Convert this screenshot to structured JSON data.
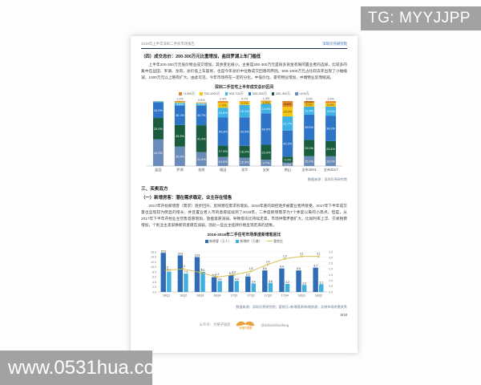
{
  "watermarks": {
    "top_right": "TG: MYYJJPP",
    "bottom_left": "www.0531hua.com"
  },
  "page": {
    "header": {
      "left": "2018年上半年深圳二手房市场报告",
      "right": "深圳贝壳研究院"
    },
    "section4_heading": "（四）成交总价：200-300万元比重增加，盐田罗湖上车门槛低",
    "section4_body": "上半年200-300万元低价物业成交增加，其余变化很小。主要是200-300万元是很多资金有限的置业者的选择，比较多的集中在盐田、罗湖、龙岗，总价低上车容易，也是今年总价中位数成交回落的原因。500-1000万元占比较去年出现了小幅缩减，1000万元以上略有扩大。由此可见，今年市场存在一定的分化，中低价位、豪宅物业增加，中端物业反而缩减。",
    "section3_title": "三、买卖双方",
    "section3_sub": "（一）新增房客：潜在需求稳定，业主存在惜售",
    "section3_body": "2017年开始新增客（需求）逐步回升，反映潜在需求的增加。2016年底的调控逐步被置业者所接受，2017年下半年成交量也呈现较为明显的增长，并且置业者入市的意愿延续到了2018年，二季度新增需求为7个季度以来的小高点。但是，从2017年下半年开始业主惜售意愿增加，放盘意愿减弱，导致客房比持续走高，市场供需矛盾扩大。比如利率上浮、交易税费增加，个别业主卖旧换新的意愿在减弱，因此一些业主挂牌价格呈现走高的迹象。",
    "page_number": "6/18",
    "footer": {
      "label": "公众号：大胡子说房",
      "logo_text": "大胡子说房",
      "handle": "@dahuzishuofang"
    }
  },
  "chart_data": [
    {
      "type": "bar",
      "stacked": true,
      "unit": "%",
      "title": "深圳二手住宅上半年成交总价区间",
      "source_note": "数据来源：深圳贝壳研究院",
      "ylim": [
        0,
        100
      ],
      "legend_position": "top",
      "categories": [
        "盐田",
        "罗湖",
        "龙岗",
        "福田",
        "龙华",
        "宝安",
        "南山",
        "全市18H1",
        "全市2017"
      ],
      "stack_order_bottom_to_top": [
        "<200万",
        "200-300万",
        "300-500万",
        "500-700万",
        "700-1000万",
        ">1000万"
      ],
      "series": [
        {
          "name": ">1000万",
          "color": "#e2862c",
          "label_color": "#4c2c08",
          "values": [
            0.2,
            1.6,
            0.8,
            2.4,
            0.7,
            1.4,
            8.6,
            3.0,
            2.6
          ]
        },
        {
          "name": "700-1000万",
          "color": "#f5c518",
          "label_color": "#5a4a08",
          "values": [
            0.3,
            1.2,
            0.6,
            7.9,
            5.2,
            3.5,
            15.0,
            5.6,
            5.9
          ]
        },
        {
          "name": "500-700万",
          "color": "#3fb3e3",
          "label_color": "#ffffff",
          "values": [
            1.5,
            4.0,
            3.1,
            15.0,
            19.1,
            14.5,
            21.7,
            12.2,
            13.8
          ]
        },
        {
          "name": "300-500万",
          "color": "#2e75c8",
          "label_color": "#ffffff",
          "values": [
            24.0,
            30.1,
            30.7,
            43.3,
            43.9,
            48.5,
            40.2,
            39.0,
            39.2
          ]
        },
        {
          "name": "200-300万",
          "color": "#1a5c3e",
          "label_color": "#ffffff",
          "values": [
            33.0,
            33.3,
            41.4,
            17.4,
            18.2,
            23.0,
            9.2,
            25.0,
            23.4
          ]
        },
        {
          "name": "<200万",
          "color": "#6b8cb8",
          "label_color": "#ffffff",
          "values": [
            41.0,
            29.9,
            21.4,
            14.0,
            12.9,
            9.7,
            5.3,
            15.2,
            15.0
          ]
        }
      ],
      "above_labels": [
        "",
        "1.2%",
        "0.6%",
        "2.4%",
        "0.7%",
        "1.4%",
        "",
        "3.0%",
        "2.6%"
      ]
    },
    {
      "type": "bar",
      "subtype": "bar+line-dual-axis",
      "title": "2016-2018年二手住宅市场季度新增客房比",
      "source_note": "数据来源：深圳贝壳研究院；客房比=新增客源/新增房源；反映市场供需关系",
      "categories": [
        "16Q1",
        "16Q2",
        "16Q3",
        "16Q4",
        "17Q1",
        "17Q2",
        "17Q3",
        "17Q4",
        "18Q1",
        "18Q2"
      ],
      "left_axis": {
        "min": 0,
        "max": 16,
        "step": 2
      },
      "right_axis": {
        "min": 0,
        "max": 3.5,
        "step": 0.5
      },
      "series": [
        {
          "name": "新增客（万人）",
          "type": "bar",
          "axis": "left",
          "color": "#2f6cb5",
          "values": [
            15.6,
            14.6,
            13.9,
            5.9,
            6.7,
            6.2,
            8.6,
            9.4,
            8.6,
            9.7
          ]
        },
        {
          "name": "新增房（万套）",
          "type": "bar",
          "axis": "left",
          "color": "#41aede",
          "values": [
            8.1,
            7.3,
            8.0,
            4.4,
            4.4,
            3.4,
            3.6,
            3.2,
            2.8,
            3.1
          ]
        },
        {
          "name": "客房比",
          "type": "line",
          "axis": "right",
          "color": "#d8b944",
          "values": [
            1.9,
            2.0,
            1.7,
            1.3,
            1.5,
            1.8,
            2.4,
            2.9,
            3.1,
            3.1
          ]
        }
      ]
    }
  ]
}
